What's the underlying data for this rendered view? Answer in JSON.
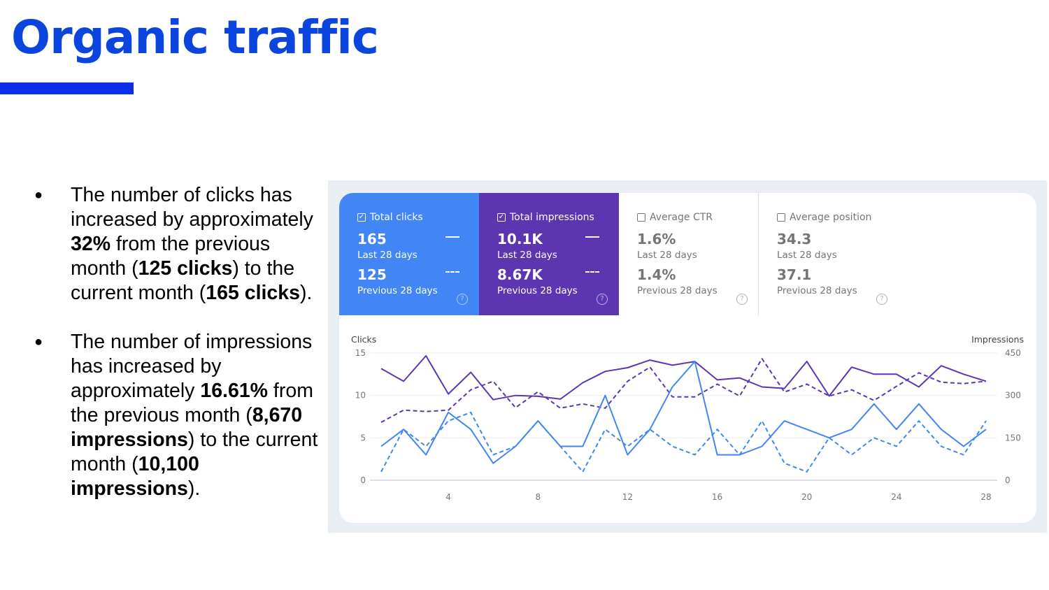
{
  "page": {
    "title": "Organic traffic",
    "bullet1": {
      "t1": "The number of clicks has increased by approximately ",
      "b1": "32%",
      "t2": " from the previous month (",
      "b2": "125 clicks",
      "t3": ") to the current month (",
      "b3": "165 clicks",
      "t4": ")."
    },
    "bullet2": {
      "t1": "The number of impressions has increased by approximately ",
      "b1": "16.61%",
      "t2": " from the previous month (",
      "b2": "8,670 impressions",
      "t3": ") to the current month (",
      "b3": "10,100 impressions",
      "t4": ")."
    }
  },
  "metrics": [
    {
      "key": "clicks",
      "label": "Total clicks",
      "checked": true,
      "current": "165",
      "current_label": "Last 28 days",
      "previous": "125",
      "previous_label": "Previous 28 days",
      "color": "#4285f4"
    },
    {
      "key": "impressions",
      "label": "Total impressions",
      "checked": true,
      "current": "10.1K",
      "current_label": "Last 28 days",
      "previous": "8.67K",
      "previous_label": "Previous 28 days",
      "color": "#5e35b1"
    },
    {
      "key": "ctr",
      "label": "Average CTR",
      "checked": false,
      "current": "1.6%",
      "current_label": "Last 28 days",
      "previous": "1.4%",
      "previous_label": "Previous 28 days",
      "color": "#757575"
    },
    {
      "key": "position",
      "label": "Average position",
      "checked": false,
      "current": "34.3",
      "current_label": "Last 28 days",
      "previous": "37.1",
      "previous_label": "Previous 28 days",
      "color": "#757575"
    }
  ],
  "icons": {
    "checkbox_checked": "check-icon",
    "help": "help-circle-icon",
    "help_glyph": "?",
    "check_glyph": "✓"
  },
  "chart_data": {
    "type": "line",
    "y_left_label": "Clicks",
    "y_right_label": "Impressions",
    "y_left_lim": [
      0,
      15
    ],
    "y_left_ticks": [
      0,
      5,
      10,
      15
    ],
    "y_right_lim": [
      0,
      450
    ],
    "y_right_ticks": [
      0,
      150,
      300,
      450
    ],
    "x": [
      1,
      2,
      3,
      4,
      5,
      6,
      7,
      8,
      9,
      10,
      11,
      12,
      13,
      14,
      15,
      16,
      17,
      18,
      19,
      20,
      21,
      22,
      23,
      24,
      25,
      26,
      27,
      28
    ],
    "x_ticks": [
      4,
      8,
      12,
      16,
      20,
      24,
      28
    ],
    "grid": true,
    "series": [
      {
        "axis": "right",
        "style": "solid",
        "color": "#5e35b1",
        "values": [
          395,
          350,
          440,
          305,
          382,
          285,
          300,
          297,
          287,
          345,
          385,
          398,
          425,
          407,
          420,
          355,
          362,
          330,
          325,
          420,
          298,
          400,
          375,
          375,
          330,
          405,
          375,
          350
        ]
      },
      {
        "axis": "right",
        "style": "dashed",
        "color": "#5e35b1",
        "values": [
          205,
          248,
          243,
          248,
          320,
          350,
          257,
          313,
          255,
          270,
          255,
          350,
          400,
          295,
          295,
          340,
          298,
          430,
          312,
          340,
          298,
          320,
          282,
          332,
          380,
          347,
          342,
          350
        ]
      },
      {
        "axis": "left",
        "style": "solid",
        "color": "#4285f4",
        "values": [
          4,
          6,
          3,
          8,
          6,
          2,
          4,
          7,
          4,
          4,
          10,
          3,
          6,
          11,
          14,
          3,
          3,
          4,
          7,
          6,
          5,
          6,
          9,
          6,
          9,
          6,
          4,
          6
        ]
      },
      {
        "axis": "left",
        "style": "dashed",
        "color": "#4285f4",
        "values": [
          1,
          6,
          4,
          7,
          8,
          3,
          4,
          7,
          4,
          1,
          6,
          4,
          6,
          4,
          3,
          6,
          3,
          7,
          2,
          1,
          5,
          3,
          5,
          4,
          7,
          4,
          3,
          7
        ]
      }
    ]
  }
}
